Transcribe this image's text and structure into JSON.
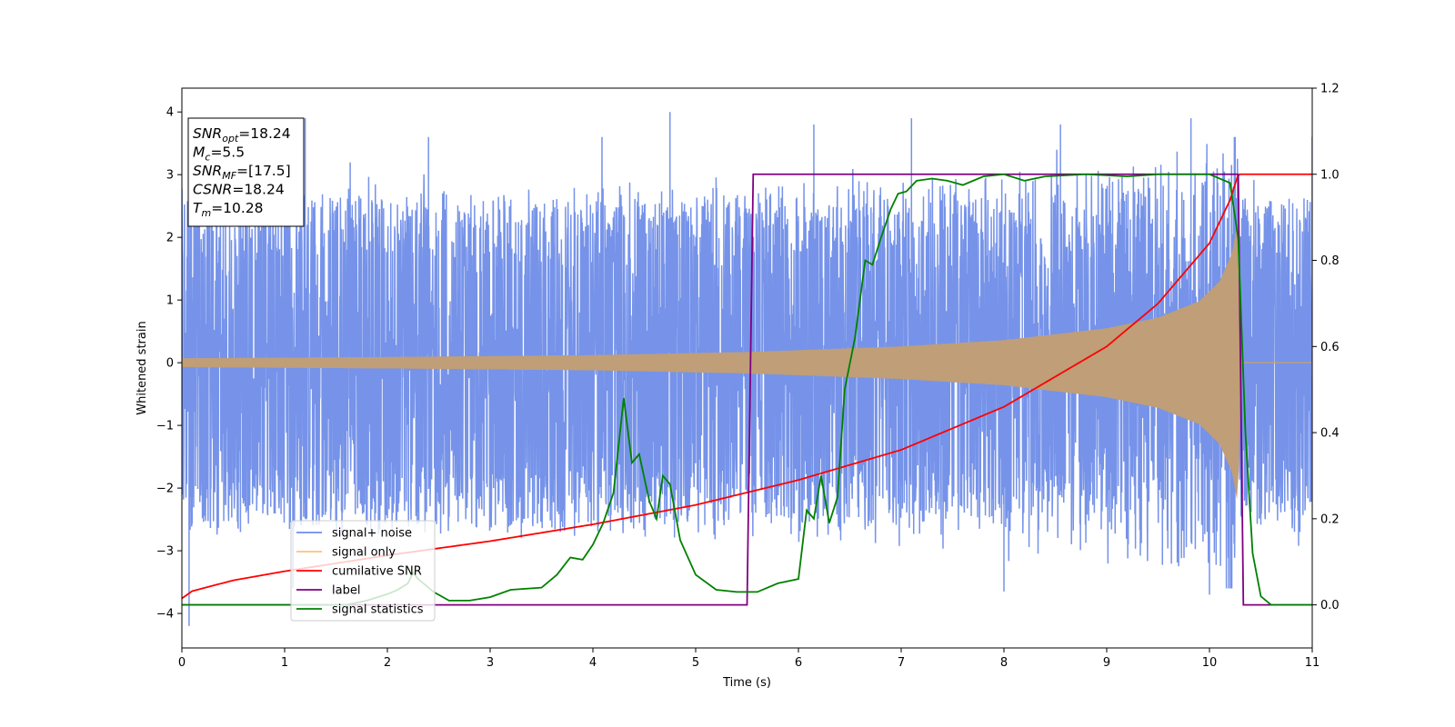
{
  "chart_data": {
    "type": "line",
    "xlabel": "Time (s)",
    "ylabel": "Whitened strain",
    "xlim": [
      0,
      11
    ],
    "ylim": [
      -4.55,
      4.38
    ],
    "y2lim": [
      -0.1,
      1.2
    ],
    "x_ticks": [
      "0",
      "1",
      "2",
      "3",
      "4",
      "5",
      "6",
      "7",
      "8",
      "9",
      "10",
      "11"
    ],
    "x_tick_values": [
      0,
      1,
      2,
      3,
      4,
      5,
      6,
      7,
      8,
      9,
      10,
      11
    ],
    "y_ticks": [
      "−4",
      "−3",
      "−2",
      "−1",
      "0",
      "1",
      "2",
      "3",
      "4"
    ],
    "y_tick_values": [
      -4,
      -3,
      -2,
      -1,
      0,
      1,
      2,
      3,
      4
    ],
    "y2_ticks": [
      "0.0",
      "0.2",
      "0.4",
      "0.6",
      "0.8",
      "1.0",
      "1.2"
    ],
    "y2_tick_values": [
      0.0,
      0.2,
      0.4,
      0.6,
      0.8,
      1.0,
      1.2
    ],
    "legend": {
      "placement": "lower-left",
      "entries": [
        "signal+ noise",
        "signal only",
        "cumilative SNR",
        "label",
        "signal statistics"
      ]
    },
    "colors": {
      "signal_noise": "#6f8de8",
      "signal_only": "#ffbb66",
      "signal_overlap": "#bf9e78",
      "cumulative_snr": "#ff0000",
      "label": "#800080",
      "signal_statistics": "#008000"
    },
    "series": [
      {
        "name": "signal+ noise",
        "axis": "left",
        "description_visual": "dense noise band",
        "envelope_typical": 2.4,
        "peak_samples": [
          {
            "x": 0.07,
            "y": -4.2
          },
          {
            "x": 1.2,
            "y": 3.9
          },
          {
            "x": 2.4,
            "y": 3.6
          },
          {
            "x": 4.75,
            "y": 4.0
          },
          {
            "x": 6.15,
            "y": 3.8
          },
          {
            "x": 7.1,
            "y": 3.9
          },
          {
            "x": 8.0,
            "y": -3.65
          },
          {
            "x": 8.55,
            "y": 3.8
          },
          {
            "x": 9.82,
            "y": 3.9
          },
          {
            "x": 10.0,
            "y": -3.7
          },
          {
            "x": 11.0,
            "y": 3.6
          }
        ]
      },
      {
        "name": "signal only",
        "axis": "left",
        "amplitude": [
          {
            "x": 0.0,
            "y": 0.07
          },
          {
            "x": 2.0,
            "y": 0.09
          },
          {
            "x": 4.0,
            "y": 0.12
          },
          {
            "x": 5.5,
            "y": 0.17
          },
          {
            "x": 7.0,
            "y": 0.26
          },
          {
            "x": 8.0,
            "y": 0.36
          },
          {
            "x": 9.0,
            "y": 0.55
          },
          {
            "x": 9.5,
            "y": 0.72
          },
          {
            "x": 9.9,
            "y": 0.98
          },
          {
            "x": 10.1,
            "y": 1.3
          },
          {
            "x": 10.22,
            "y": 1.75
          },
          {
            "x": 10.28,
            "y": 2.3
          },
          {
            "x": 10.3,
            "y": 0.0
          },
          {
            "x": 11.0,
            "y": 0.0
          }
        ]
      },
      {
        "name": "cumilative SNR",
        "axis": "right",
        "points": [
          {
            "x": 0.0,
            "y": 0.015
          },
          {
            "x": 0.1,
            "y": 0.032
          },
          {
            "x": 0.5,
            "y": 0.057
          },
          {
            "x": 1.0,
            "y": 0.078
          },
          {
            "x": 2.0,
            "y": 0.115
          },
          {
            "x": 3.0,
            "y": 0.148
          },
          {
            "x": 4.0,
            "y": 0.187
          },
          {
            "x": 5.0,
            "y": 0.232
          },
          {
            "x": 6.0,
            "y": 0.29
          },
          {
            "x": 7.0,
            "y": 0.36
          },
          {
            "x": 8.0,
            "y": 0.46
          },
          {
            "x": 9.0,
            "y": 0.6
          },
          {
            "x": 9.5,
            "y": 0.7
          },
          {
            "x": 10.0,
            "y": 0.84
          },
          {
            "x": 10.2,
            "y": 0.94
          },
          {
            "x": 10.28,
            "y": 1.0
          },
          {
            "x": 11.0,
            "y": 1.0
          }
        ]
      },
      {
        "name": "label",
        "axis": "right",
        "points": [
          {
            "x": 0.0,
            "y": 0.0
          },
          {
            "x": 5.5,
            "y": 0.0
          },
          {
            "x": 5.56,
            "y": 1.0
          },
          {
            "x": 10.28,
            "y": 1.0
          },
          {
            "x": 10.33,
            "y": 0.0
          },
          {
            "x": 11.0,
            "y": 0.0
          }
        ]
      },
      {
        "name": "signal statistics",
        "axis": "right",
        "points": [
          {
            "x": 0.0,
            "y": 0.0
          },
          {
            "x": 1.6,
            "y": 0.0
          },
          {
            "x": 1.8,
            "y": 0.01
          },
          {
            "x": 2.0,
            "y": 0.025
          },
          {
            "x": 2.1,
            "y": 0.035
          },
          {
            "x": 2.2,
            "y": 0.05
          },
          {
            "x": 2.25,
            "y": 0.075
          },
          {
            "x": 2.3,
            "y": 0.06
          },
          {
            "x": 2.45,
            "y": 0.03
          },
          {
            "x": 2.6,
            "y": 0.01
          },
          {
            "x": 2.8,
            "y": 0.01
          },
          {
            "x": 3.0,
            "y": 0.018
          },
          {
            "x": 3.2,
            "y": 0.035
          },
          {
            "x": 3.5,
            "y": 0.04
          },
          {
            "x": 3.65,
            "y": 0.07
          },
          {
            "x": 3.78,
            "y": 0.11
          },
          {
            "x": 3.9,
            "y": 0.105
          },
          {
            "x": 4.0,
            "y": 0.14
          },
          {
            "x": 4.1,
            "y": 0.19
          },
          {
            "x": 4.2,
            "y": 0.26
          },
          {
            "x": 4.3,
            "y": 0.48
          },
          {
            "x": 4.38,
            "y": 0.33
          },
          {
            "x": 4.45,
            "y": 0.35
          },
          {
            "x": 4.55,
            "y": 0.24
          },
          {
            "x": 4.62,
            "y": 0.2
          },
          {
            "x": 4.68,
            "y": 0.3
          },
          {
            "x": 4.75,
            "y": 0.28
          },
          {
            "x": 4.85,
            "y": 0.15
          },
          {
            "x": 5.0,
            "y": 0.07
          },
          {
            "x": 5.2,
            "y": 0.035
          },
          {
            "x": 5.4,
            "y": 0.03
          },
          {
            "x": 5.6,
            "y": 0.03
          },
          {
            "x": 5.8,
            "y": 0.05
          },
          {
            "x": 6.0,
            "y": 0.06
          },
          {
            "x": 6.08,
            "y": 0.22
          },
          {
            "x": 6.15,
            "y": 0.2
          },
          {
            "x": 6.22,
            "y": 0.3
          },
          {
            "x": 6.3,
            "y": 0.19
          },
          {
            "x": 6.38,
            "y": 0.25
          },
          {
            "x": 6.45,
            "y": 0.5
          },
          {
            "x": 6.55,
            "y": 0.62
          },
          {
            "x": 6.65,
            "y": 0.8
          },
          {
            "x": 6.72,
            "y": 0.79
          },
          {
            "x": 6.8,
            "y": 0.85
          },
          {
            "x": 6.9,
            "y": 0.92
          },
          {
            "x": 6.97,
            "y": 0.955
          },
          {
            "x": 7.05,
            "y": 0.96
          },
          {
            "x": 7.15,
            "y": 0.985
          },
          {
            "x": 7.3,
            "y": 0.99
          },
          {
            "x": 7.45,
            "y": 0.985
          },
          {
            "x": 7.6,
            "y": 0.975
          },
          {
            "x": 7.8,
            "y": 0.995
          },
          {
            "x": 8.0,
            "y": 1.0
          },
          {
            "x": 8.2,
            "y": 0.985
          },
          {
            "x": 8.4,
            "y": 0.995
          },
          {
            "x": 8.8,
            "y": 1.0
          },
          {
            "x": 9.2,
            "y": 0.995
          },
          {
            "x": 9.5,
            "y": 1.0
          },
          {
            "x": 10.0,
            "y": 1.0
          },
          {
            "x": 10.2,
            "y": 0.98
          },
          {
            "x": 10.28,
            "y": 0.85
          },
          {
            "x": 10.35,
            "y": 0.4
          },
          {
            "x": 10.42,
            "y": 0.12
          },
          {
            "x": 10.5,
            "y": 0.02
          },
          {
            "x": 10.6,
            "y": 0.0
          },
          {
            "x": 11.0,
            "y": 0.0
          }
        ]
      }
    ],
    "annotation": {
      "lines": [
        {
          "main": "SNR",
          "sub": "opt",
          "rest": "=18.24"
        },
        {
          "main": "M",
          "sub": "c",
          "rest": "=5.5"
        },
        {
          "main": "SNR",
          "sub": "MF",
          "rest": "=[17.5]"
        },
        {
          "main": "CSNR",
          "sub": "",
          "rest": "=18.24"
        },
        {
          "main": "T",
          "sub": "m",
          "rest": "=10.28"
        }
      ]
    }
  }
}
